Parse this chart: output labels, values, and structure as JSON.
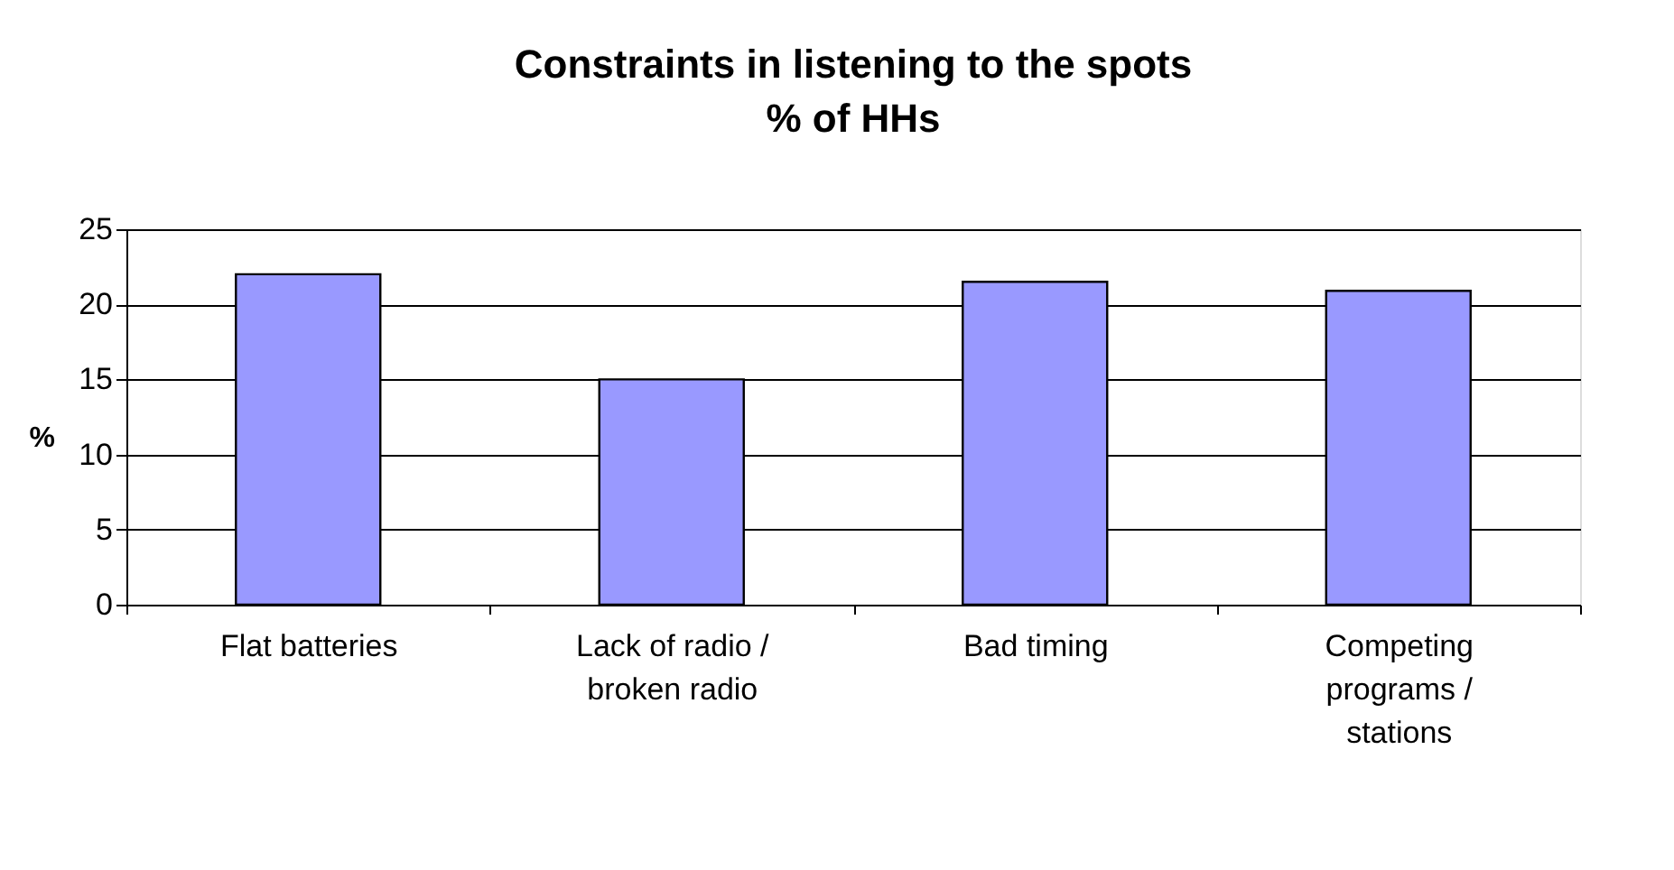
{
  "chart_data": {
    "type": "bar",
    "title": "Constraints in listening to the spots",
    "subtitle": "% of HHs",
    "ylabel": "%",
    "categories": [
      "Flat batteries",
      "Lack of radio / broken radio",
      "Bad timing",
      "Competing programs / stations"
    ],
    "values": [
      22.0,
      15.0,
      21.5,
      20.9
    ],
    "color": "#9999ff",
    "ylim": [
      0,
      25
    ],
    "yticks": [
      0,
      5,
      10,
      15,
      20,
      25
    ],
    "grid": "y"
  }
}
